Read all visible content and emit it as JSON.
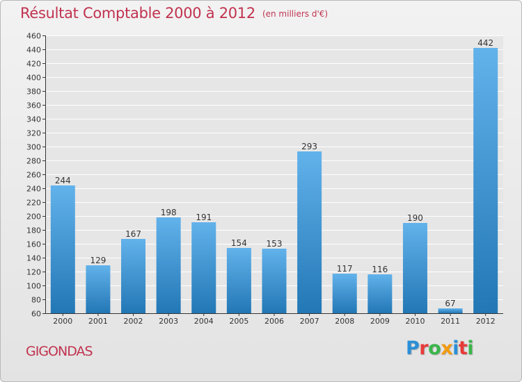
{
  "title": {
    "main": "Résultat Comptable 2000 à 2012",
    "unit": "(en milliers d'€)"
  },
  "place": "GIGONDAS",
  "logo": {
    "text": "Proxiti",
    "colors": [
      "#2b8fd6",
      "#e83a3a",
      "#3bb54a",
      "#f39c12",
      "#2b8fd6",
      "#e83a3a",
      "#3bb54a"
    ]
  },
  "colors": {
    "title": "#c0334f",
    "bar_top": "#62b2eb",
    "bar_bottom": "#2277b5",
    "grid": "#ffffff",
    "axis": "#333333"
  },
  "chart_data": {
    "type": "bar",
    "title": "Résultat Comptable 2000 à 2012",
    "subtitle": "(en milliers d'€)",
    "xlabel": "",
    "ylabel": "",
    "categories": [
      "2000",
      "2001",
      "2002",
      "2003",
      "2004",
      "2005",
      "2006",
      "2007",
      "2008",
      "2009",
      "2010",
      "2011",
      "2012"
    ],
    "values": [
      244,
      129,
      167,
      198,
      191,
      154,
      153,
      293,
      117,
      116,
      190,
      67,
      442
    ],
    "ylim": [
      60,
      460
    ],
    "yticks": [
      60,
      80,
      100,
      120,
      140,
      160,
      180,
      200,
      220,
      240,
      260,
      280,
      300,
      320,
      340,
      360,
      380,
      400,
      420,
      440,
      460
    ],
    "grid": true
  }
}
